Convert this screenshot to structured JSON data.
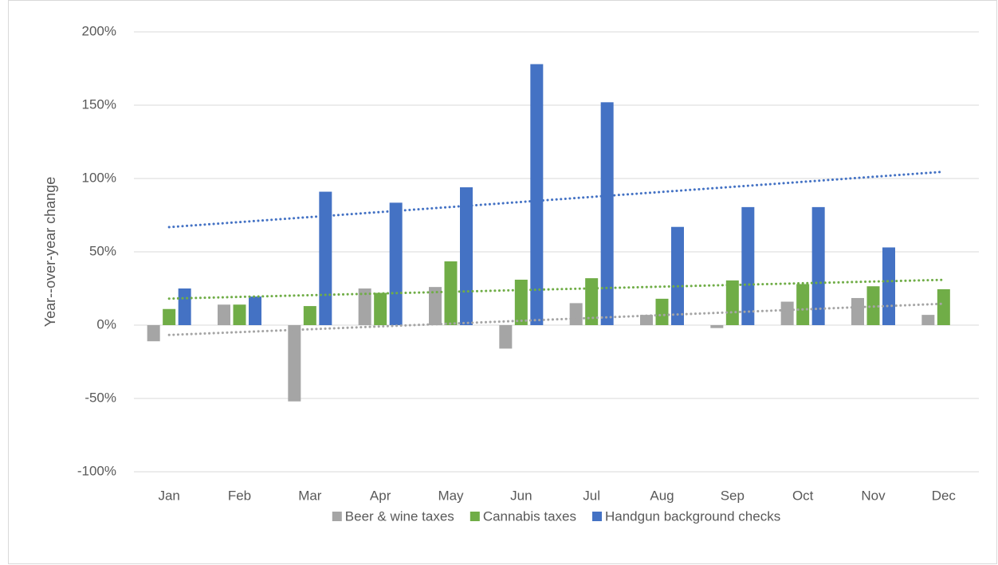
{
  "chart_data": {
    "type": "bar",
    "y_label": "Year--over-year change",
    "categories": [
      "Jan",
      "Feb",
      "Mar",
      "Apr",
      "May",
      "Jun",
      "Jul",
      "Aug",
      "Sep",
      "Oct",
      "Nov",
      "Dec"
    ],
    "series": [
      {
        "name": "Beer & wine taxes",
        "color": "#a5a5a5",
        "values": [
          -11,
          14,
          -52,
          25,
          26,
          -16,
          15,
          7,
          -2,
          16,
          18.5,
          7
        ]
      },
      {
        "name": "Cannabis taxes",
        "color": "#70ad47",
        "values": [
          11,
          14,
          13,
          22,
          43.5,
          31,
          32,
          18,
          30.5,
          28,
          26.5,
          24.5
        ]
      },
      {
        "name": "Handgun background checks",
        "color": "#4472c4",
        "values": [
          25,
          19.5,
          91,
          83.5,
          94,
          178,
          152,
          67,
          80.5,
          80.5,
          53,
          null
        ]
      }
    ],
    "ylim": [
      -100,
      200
    ],
    "yticks": [
      {
        "value": -100,
        "label": "-100%"
      },
      {
        "value": -50,
        "label": "-50%"
      },
      {
        "value": 0,
        "label": "0%"
      },
      {
        "value": 50,
        "label": "50%"
      },
      {
        "value": 100,
        "label": "100%"
      },
      {
        "value": 150,
        "label": "150%"
      },
      {
        "value": 200,
        "label": "200%"
      }
    ],
    "grid": true,
    "trendline": true,
    "legend": "bottom"
  }
}
